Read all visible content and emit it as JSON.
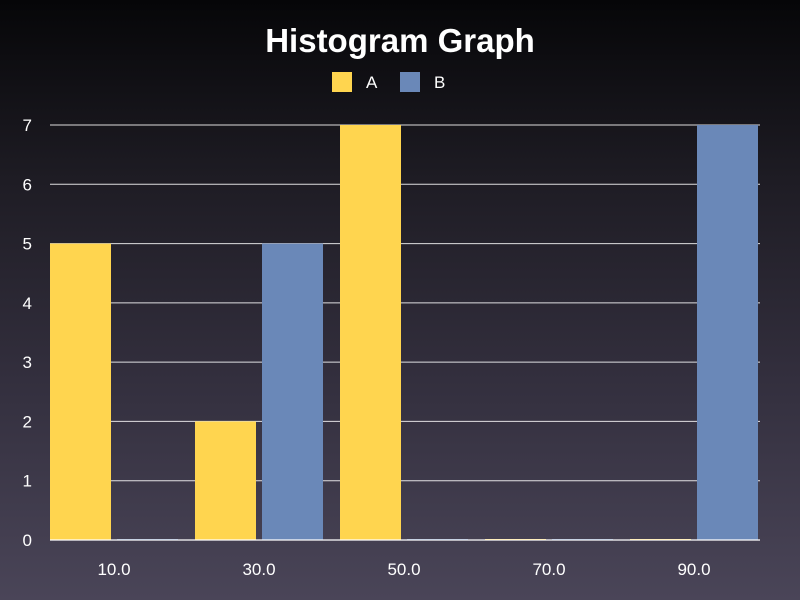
{
  "chart_data": {
    "type": "bar",
    "title": "Histogram Graph",
    "xlabel": "",
    "ylabel": "",
    "categories": [
      "10.0",
      "30.0",
      "50.0",
      "70.0",
      "90.0"
    ],
    "series": [
      {
        "name": "A",
        "values": [
          5,
          2,
          7,
          0,
          0
        ],
        "color": "#ffd54f"
      },
      {
        "name": "B",
        "values": [
          0,
          5,
          0,
          0,
          7
        ],
        "color": "#6a88b8"
      }
    ],
    "ylim": [
      0,
      7
    ],
    "yticks": [
      "0",
      "1",
      "2",
      "3",
      "4",
      "5",
      "6",
      "7"
    ],
    "grid": true,
    "legend_position": "top-center",
    "colors": {
      "text": "#ffffff",
      "grid": "#ffffff",
      "background_top": "#060608",
      "background_bottom": "#4a4558"
    }
  }
}
